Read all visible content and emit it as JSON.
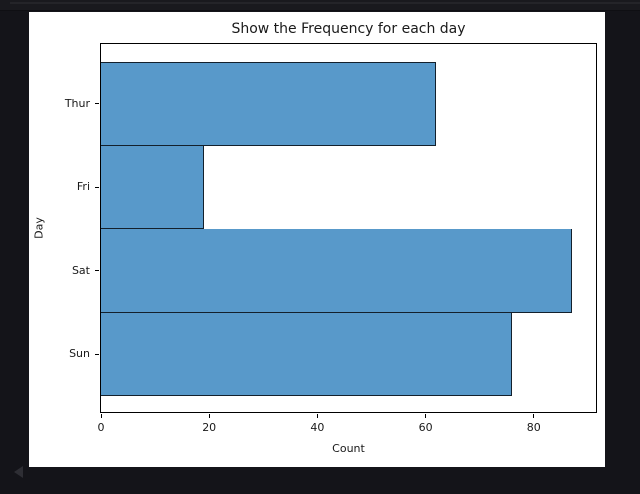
{
  "page": {
    "background_color": "#141419",
    "figure_background": "#ffffff"
  },
  "icons": {
    "collapse_arrow": "left-triangle-icon"
  },
  "chart_data": {
    "type": "bar",
    "orientation": "horizontal",
    "title": "Show the Frequency for each day",
    "xlabel": "Count",
    "ylabel": "Day",
    "categories": [
      "Thur",
      "Fri",
      "Sat",
      "Sun"
    ],
    "values": [
      62,
      19,
      87,
      76
    ],
    "x_ticks": [
      0,
      20,
      40,
      60,
      80
    ],
    "xlim": [
      0,
      91.5
    ],
    "grid": false,
    "legend": null,
    "bar_color": "#5899CA",
    "bar_edge_color": "#13202C",
    "bars_touch": true
  }
}
